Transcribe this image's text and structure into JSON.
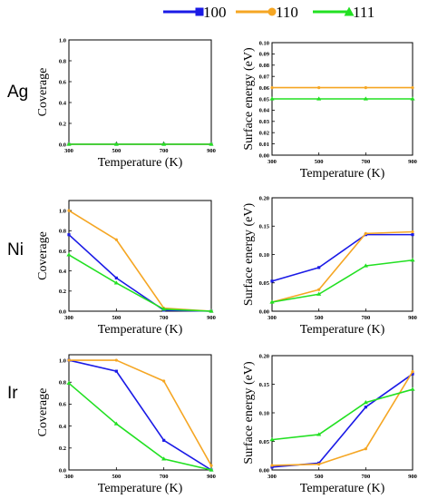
{
  "legend": [
    {
      "name": "100",
      "color": "#1a1ae6",
      "marker": "square"
    },
    {
      "name": "110",
      "color": "#f5a623",
      "marker": "circle"
    },
    {
      "name": "111",
      "color": "#22e022",
      "marker": "triangle"
    }
  ],
  "row_labels": [
    "Ag",
    "Ni",
    "Ir"
  ],
  "chart_data": [
    {
      "type": "line",
      "row": "Ag",
      "col": "coverage",
      "xlabel": "Temperature (K)",
      "ylabel": "Coverage",
      "x": [
        300,
        500,
        700,
        900
      ],
      "xticks": [
        "300",
        "500",
        "700",
        "900"
      ],
      "ylim": [
        0,
        1.0
      ],
      "yticks": [
        "0.0",
        "0.2",
        "0.4",
        "0.6",
        "0.8",
        "1.0"
      ],
      "series": [
        {
          "name": "100",
          "values": [
            0,
            0,
            0,
            0
          ]
        },
        {
          "name": "110",
          "values": [
            0,
            0,
            0,
            0
          ]
        },
        {
          "name": "111",
          "values": [
            0,
            0,
            0,
            0
          ]
        }
      ]
    },
    {
      "type": "line",
      "row": "Ag",
      "col": "energy",
      "xlabel": "Temperature (K)",
      "ylabel": "Surface energy (eV)",
      "x": [
        300,
        500,
        700,
        900
      ],
      "xticks": [
        "300",
        "500",
        "700",
        "900"
      ],
      "ylim": [
        0,
        0.1
      ],
      "yticks": [
        "0.00",
        "0.01",
        "0.02",
        "0.03",
        "0.04",
        "0.05",
        "0.06",
        "0.07",
        "0.08",
        "0.09",
        "0.10"
      ],
      "series": [
        {
          "name": "110",
          "values": [
            0.06,
            0.06,
            0.06,
            0.06
          ]
        },
        {
          "name": "111",
          "values": [
            0.05,
            0.05,
            0.05,
            0.05
          ]
        }
      ]
    },
    {
      "type": "line",
      "row": "Ni",
      "col": "coverage",
      "xlabel": "Temperature (K)",
      "ylabel": "Coverage",
      "x": [
        300,
        500,
        700,
        900
      ],
      "xticks": [
        "300",
        "500",
        "700",
        "900"
      ],
      "ylim": [
        0,
        1.1
      ],
      "yticks": [
        "0.0",
        "0.2",
        "0.4",
        "0.6",
        "0.8",
        "1.0"
      ],
      "series": [
        {
          "name": "100",
          "values": [
            0.76,
            0.33,
            0.01,
            0
          ]
        },
        {
          "name": "110",
          "values": [
            1.0,
            0.71,
            0.03,
            0
          ]
        },
        {
          "name": "111",
          "values": [
            0.56,
            0.28,
            0.02,
            0
          ]
        }
      ]
    },
    {
      "type": "line",
      "row": "Ni",
      "col": "energy",
      "xlabel": "Temperature (K)",
      "ylabel": "Surface energy (eV)",
      "x": [
        300,
        500,
        700,
        900
      ],
      "xticks": [
        "300",
        "500",
        "700",
        "900"
      ],
      "ylim": [
        0,
        0.2
      ],
      "yticks": [
        "0.00",
        "0.05",
        "0.10",
        "0.15",
        "0.20"
      ],
      "series": [
        {
          "name": "100",
          "values": [
            0.053,
            0.077,
            0.135,
            0.135
          ]
        },
        {
          "name": "110",
          "values": [
            0.016,
            0.038,
            0.137,
            0.14
          ]
        },
        {
          "name": "111",
          "values": [
            0.016,
            0.03,
            0.08,
            0.09
          ]
        }
      ]
    },
    {
      "type": "line",
      "row": "Ir",
      "col": "coverage",
      "xlabel": "Temperature (K)",
      "ylabel": "Coverage",
      "x": [
        300,
        500,
        700,
        900
      ],
      "xticks": [
        "300",
        "500",
        "700",
        "900"
      ],
      "ylim": [
        0,
        1.05
      ],
      "yticks": [
        "0.0",
        "0.2",
        "0.4",
        "0.6",
        "0.8",
        "1.0"
      ],
      "series": [
        {
          "name": "100",
          "values": [
            1.0,
            0.9,
            0.27,
            0.0
          ]
        },
        {
          "name": "110",
          "values": [
            1.0,
            1.0,
            0.81,
            0.04
          ]
        },
        {
          "name": "111",
          "values": [
            0.79,
            0.42,
            0.1,
            0.0
          ]
        }
      ]
    },
    {
      "type": "line",
      "row": "Ir",
      "col": "energy",
      "xlabel": "Temperature (K)",
      "ylabel": "Surface energy (eV)",
      "x": [
        300,
        500,
        700,
        900
      ],
      "xticks": [
        "300",
        "500",
        "700",
        "900"
      ],
      "ylim": [
        0,
        0.2
      ],
      "yticks": [
        "0.00",
        "0.05",
        "0.10",
        "0.15",
        "0.20"
      ],
      "series": [
        {
          "name": "100",
          "values": [
            0.005,
            0.012,
            0.11,
            0.168
          ]
        },
        {
          "name": "110",
          "values": [
            0.008,
            0.01,
            0.037,
            0.172
          ]
        },
        {
          "name": "111",
          "values": [
            0.053,
            0.062,
            0.118,
            0.141
          ]
        }
      ]
    }
  ]
}
